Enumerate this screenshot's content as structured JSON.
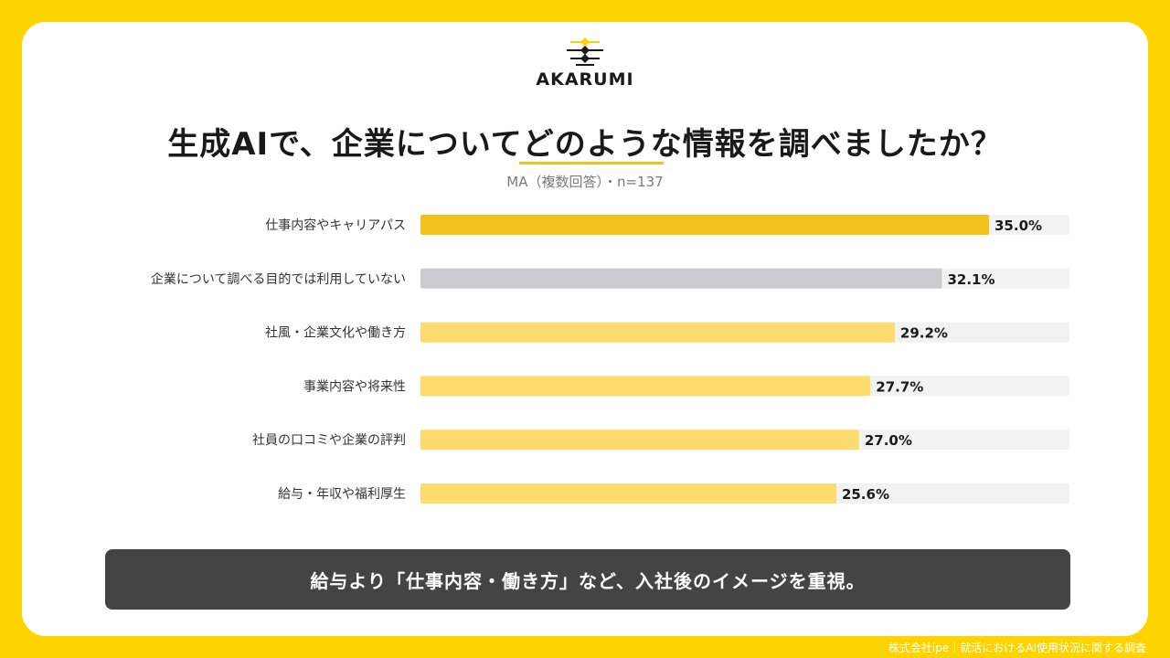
{
  "logo": {
    "text": "AKARUMI"
  },
  "header": {
    "title": "生成AIで、企業についてどのような情報を調べましたか？",
    "subtitle": "MA（複数回答）・n=137"
  },
  "colors": {
    "background": "#FDD400",
    "highlight_bar": "#F2C11B",
    "gray_bar": "#C9CCCF",
    "normal_bar": "#FDDB6E",
    "track": "#F2F2F0",
    "banner": "#444444"
  },
  "chart_data": {
    "type": "bar",
    "orientation": "horizontal",
    "categories": [
      "仕事内容やキャリアパス",
      "企業について調べる目的では利用していない",
      "社風・企業文化や働き方",
      "事業内容や将来性",
      "社員の口コミや企業の評判",
      "給与・年収や福利厚生"
    ],
    "values": [
      35.0,
      32.1,
      29.2,
      27.7,
      27.0,
      25.6
    ],
    "value_labels": [
      "35.0%",
      "32.1%",
      "29.2%",
      "27.7%",
      "27.0%",
      "25.6%"
    ],
    "bar_styles": [
      "highlight",
      "gray",
      "normal",
      "normal",
      "normal",
      "normal"
    ],
    "xlim": [
      0,
      40
    ],
    "grid": false
  },
  "banner": {
    "text": "給与より「仕事内容・働き方」など、入社後のイメージを重視。"
  },
  "footer": {
    "text": "株式会社ipe｜就活におけるAI使用状況に関する調査"
  }
}
